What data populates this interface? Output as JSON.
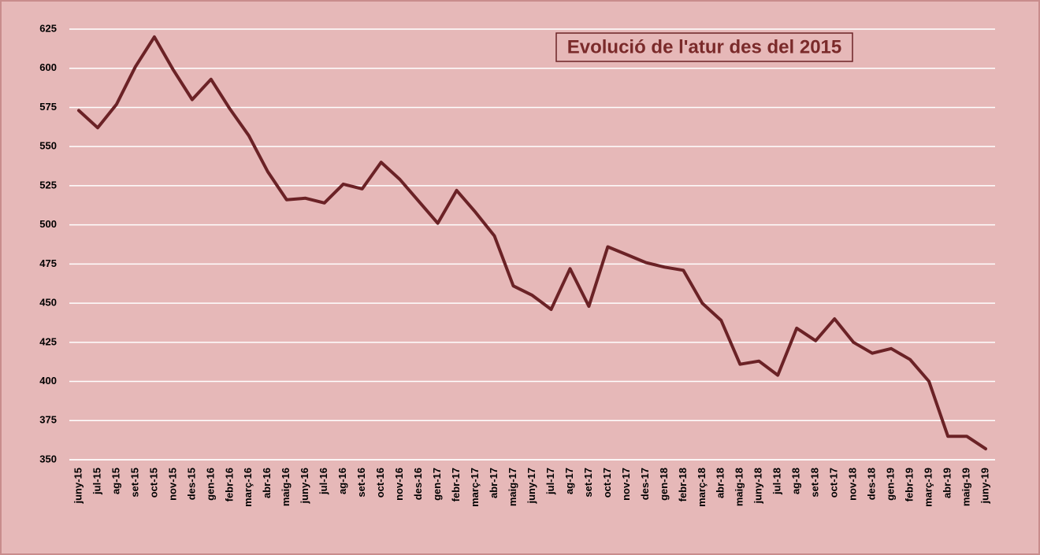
{
  "chart_data": {
    "type": "line",
    "title": "Evolució de l'atur des del 2015",
    "categories": [
      "juny-15",
      "jul-15",
      "ag-15",
      "set-15",
      "oct-15",
      "nov-15",
      "des-15",
      "gen-16",
      "febr-16",
      "març-16",
      "abr-16",
      "maig-16",
      "juny-16",
      "jul-16",
      "ag-16",
      "set-16",
      "oct-16",
      "nov-16",
      "des-16",
      "gen-17",
      "febr-17",
      "març-17",
      "abr-17",
      "maig-17",
      "juny-17",
      "jul-17",
      "ag-17",
      "set-17",
      "oct-17",
      "nov-17",
      "des-17",
      "gen-18",
      "febr-18",
      "març-18",
      "abr-18",
      "maig-18",
      "juny-18",
      "jul-18",
      "ag-18",
      "set-18",
      "oct-17",
      "nov-18",
      "des-18",
      "gen-19",
      "febr-19",
      "març-19",
      "abr-19",
      "maig-19",
      "juny-19"
    ],
    "values": [
      573,
      562,
      577,
      601,
      620,
      599,
      580,
      593,
      574,
      557,
      534,
      516,
      517,
      514,
      526,
      523,
      540,
      529,
      515,
      501,
      522,
      508,
      493,
      461,
      455,
      446,
      472,
      448,
      486,
      481,
      476,
      473,
      471,
      450,
      439,
      411,
      413,
      404,
      434,
      426,
      440,
      425,
      418,
      421,
      414,
      400,
      365,
      365,
      357
    ],
    "color": "#6b2226",
    "ylim": [
      350,
      625
    ],
    "yticks": [
      350,
      375,
      400,
      425,
      450,
      475,
      500,
      525,
      550,
      575,
      600,
      625
    ],
    "grid": true
  }
}
